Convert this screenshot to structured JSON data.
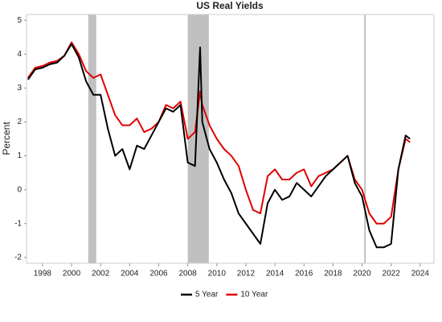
{
  "chart_data": {
    "type": "line",
    "title": "US Real Yields",
    "y_label": "Percent",
    "x": [
      1997.0,
      1997.5,
      1998.0,
      1998.5,
      1999.0,
      1999.5,
      2000.0,
      2000.5,
      2001.0,
      2001.5,
      2002.0,
      2002.5,
      2003.0,
      2003.5,
      2004.0,
      2004.5,
      2005.0,
      2005.5,
      2006.0,
      2006.5,
      2007.0,
      2007.5,
      2008.0,
      2008.5,
      2008.85,
      2009.0,
      2009.5,
      2010.0,
      2010.5,
      2011.0,
      2011.5,
      2012.0,
      2012.5,
      2013.0,
      2013.5,
      2014.0,
      2014.5,
      2015.0,
      2015.5,
      2016.0,
      2016.5,
      2017.0,
      2017.5,
      2018.0,
      2018.5,
      2019.0,
      2019.5,
      2020.0,
      2020.5,
      2021.0,
      2021.5,
      2022.0,
      2022.5,
      2023.0,
      2023.3
    ],
    "series": [
      {
        "name": "10 Year",
        "color": "#e00000",
        "values": [
          3.3,
          3.6,
          3.65,
          3.75,
          3.8,
          3.95,
          4.35,
          4.0,
          3.5,
          3.3,
          3.4,
          2.8,
          2.2,
          1.9,
          1.9,
          2.1,
          1.7,
          1.8,
          2.0,
          2.5,
          2.4,
          2.6,
          1.5,
          1.7,
          2.9,
          2.5,
          1.9,
          1.5,
          1.2,
          1.0,
          0.7,
          0.0,
          -0.6,
          -0.7,
          0.4,
          0.6,
          0.3,
          0.3,
          0.5,
          0.6,
          0.1,
          0.4,
          0.5,
          0.6,
          0.8,
          1.0,
          0.3,
          0.0,
          -0.7,
          -1.0,
          -1.0,
          -0.8,
          0.6,
          1.5,
          1.4
        ]
      },
      {
        "name": "5 Year",
        "color": "#000000",
        "values": [
          3.25,
          3.55,
          3.6,
          3.7,
          3.75,
          3.95,
          4.3,
          3.9,
          3.2,
          2.8,
          2.8,
          1.8,
          1.0,
          1.2,
          0.6,
          1.3,
          1.2,
          1.6,
          2.0,
          2.4,
          2.3,
          2.5,
          0.8,
          0.7,
          4.2,
          2.0,
          1.2,
          0.8,
          0.3,
          -0.1,
          -0.7,
          -1.0,
          -1.3,
          -1.6,
          -0.4,
          0.0,
          -0.3,
          -0.2,
          0.2,
          0.0,
          -0.2,
          0.1,
          0.4,
          0.6,
          0.8,
          1.0,
          0.2,
          -0.2,
          -1.2,
          -1.7,
          -1.7,
          -1.6,
          0.6,
          1.6,
          1.5
        ]
      }
    ],
    "recessions": [
      [
        2001.15,
        2001.7
      ],
      [
        2008.0,
        2009.45
      ]
    ],
    "marker_line": 2020.2,
    "xlim": [
      1996.9,
      2024.95
    ],
    "xticks": [
      1998,
      2000,
      2002,
      2004,
      2006,
      2008,
      2010,
      2012,
      2014,
      2016,
      2018,
      2020,
      2022,
      2024
    ],
    "ylim": [
      -2.17,
      5.17
    ],
    "yticks": [
      -2,
      -1,
      0,
      1,
      2,
      3,
      4,
      5
    ],
    "legend": "bottom"
  }
}
